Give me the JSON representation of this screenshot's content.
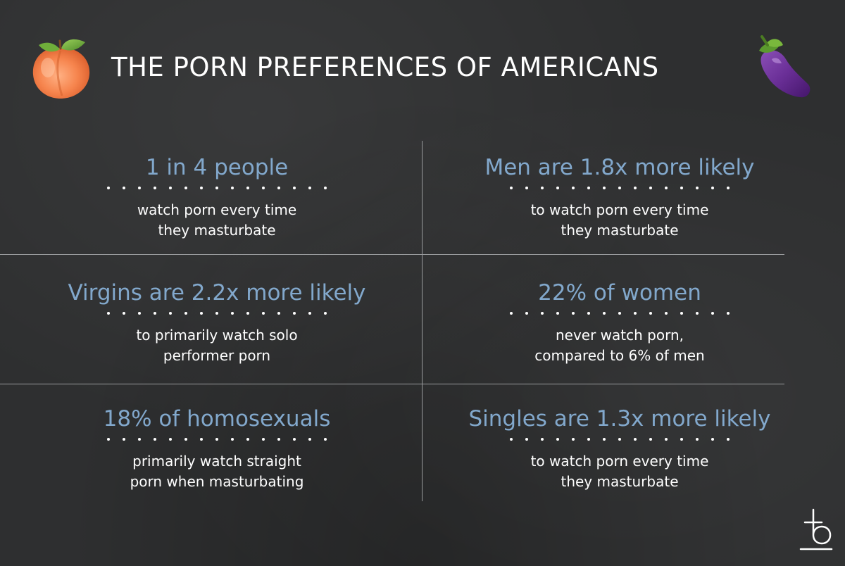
{
  "header": {
    "title": "THE PORN PREFERENCES OF AMERICANS",
    "left_icon": "peach-emoji",
    "right_icon": "eggplant-emoji"
  },
  "stats": [
    {
      "headline": "1 in 4 people",
      "lines": [
        "watch porn every time",
        "they masturbate"
      ]
    },
    {
      "headline": "Men are 1.8x more likely",
      "lines": [
        "to watch porn every time",
        "they masturbate"
      ]
    },
    {
      "headline": "Virgins are 2.2x more likely",
      "lines": [
        "to primarily watch solo",
        "performer porn"
      ]
    },
    {
      "headline": "22% of women",
      "lines": [
        "never watch porn,",
        "compared to 6% of men"
      ]
    },
    {
      "headline": "18% of homosexuals",
      "lines": [
        "primarily watch straight",
        "porn when masturbating"
      ]
    },
    {
      "headline": "Singles are 1.3x more likely",
      "lines": [
        "to watch porn every time",
        "they masturbate"
      ]
    }
  ],
  "brand": {
    "icon": "brand-logo"
  },
  "colors": {
    "background": "#2e2f30",
    "headline": "#82a8cc",
    "text": "#ffffff",
    "divider": "#9a9c9e"
  }
}
